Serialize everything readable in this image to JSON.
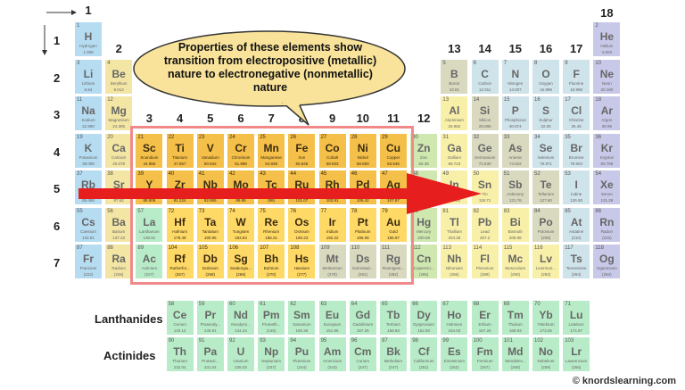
{
  "period_labels": [
    "1",
    "2",
    "3",
    "4",
    "5",
    "6",
    "7"
  ],
  "group_labels": [
    "1",
    "2",
    "3",
    "4",
    "5",
    "6",
    "7",
    "8",
    "9",
    "10",
    "11",
    "12",
    "13",
    "14",
    "15",
    "16",
    "17",
    "18"
  ],
  "callout": "Properties of these elements show transition from electropositive (metallic) nature to electronegative (nonmetallic) nature",
  "series_labels": {
    "lanthanides": "Lanthanides",
    "actinides": "Actinides"
  },
  "credit": "© knordslearning.com",
  "colors": {
    "s1": "#b6dcf2",
    "s2": "#f3e6a4",
    "transition": "#f4c04a",
    "transition_lo": "#ffd966",
    "post": "#cfe8b0",
    "metalloid": "#d9d9c0",
    "nonmetal": "#f8f0a8",
    "halogen": "#cfe3ea",
    "noble": "#c8c8e8",
    "f": "#b8ecc8",
    "highlight_border": "#f08a8a",
    "arrow": "#e61e1e"
  },
  "elements": [
    {
      "n": "1",
      "s": "H",
      "name": "Hydrogen",
      "m": "1.008",
      "r": 1,
      "c": 1,
      "cat": "s1"
    },
    {
      "n": "2",
      "s": "He",
      "name": "Helium",
      "m": "4.003",
      "r": 1,
      "c": 18,
      "cat": "noble"
    },
    {
      "n": "3",
      "s": "Li",
      "name": "Lithium",
      "m": "6.94",
      "r": 2,
      "c": 1,
      "cat": "s1"
    },
    {
      "n": "4",
      "s": "Be",
      "name": "Beryllium",
      "m": "9.012",
      "r": 2,
      "c": 2,
      "cat": "s2"
    },
    {
      "n": "5",
      "s": "B",
      "name": "Boron",
      "m": "10.81",
      "r": 2,
      "c": 13,
      "cat": "metalloid"
    },
    {
      "n": "6",
      "s": "C",
      "name": "Carbon",
      "m": "12.011",
      "r": 2,
      "c": 14,
      "cat": "halogen"
    },
    {
      "n": "7",
      "s": "N",
      "name": "Nitrogen",
      "m": "14.007",
      "r": 2,
      "c": 15,
      "cat": "halogen"
    },
    {
      "n": "8",
      "s": "O",
      "name": "Oxygen",
      "m": "15.999",
      "r": 2,
      "c": 16,
      "cat": "halogen"
    },
    {
      "n": "9",
      "s": "F",
      "name": "Fluorine",
      "m": "18.998",
      "r": 2,
      "c": 17,
      "cat": "halogen"
    },
    {
      "n": "10",
      "s": "Ne",
      "name": "Neon",
      "m": "20.180",
      "r": 2,
      "c": 18,
      "cat": "noble"
    },
    {
      "n": "11",
      "s": "Na",
      "name": "Sodium",
      "m": "22.990",
      "r": 3,
      "c": 1,
      "cat": "s1"
    },
    {
      "n": "12",
      "s": "Mg",
      "name": "Magnesium",
      "m": "24.305",
      "r": 3,
      "c": 2,
      "cat": "s2"
    },
    {
      "n": "13",
      "s": "Al",
      "name": "Aluminium",
      "m": "26.982",
      "r": 3,
      "c": 13,
      "cat": "nonmetal"
    },
    {
      "n": "14",
      "s": "Si",
      "name": "Silicon",
      "m": "28.085",
      "r": 3,
      "c": 14,
      "cat": "metalloid"
    },
    {
      "n": "15",
      "s": "P",
      "name": "Phosphorus",
      "m": "30.974",
      "r": 3,
      "c": 15,
      "cat": "halogen"
    },
    {
      "n": "16",
      "s": "S",
      "name": "Sulphur",
      "m": "32.06",
      "r": 3,
      "c": 16,
      "cat": "halogen"
    },
    {
      "n": "17",
      "s": "Cl",
      "name": "Chlorine",
      "m": "35.45",
      "r": 3,
      "c": 17,
      "cat": "halogen"
    },
    {
      "n": "18",
      "s": "Ar",
      "name": "Argon",
      "m": "39.95",
      "r": 3,
      "c": 18,
      "cat": "noble"
    },
    {
      "n": "19",
      "s": "K",
      "name": "Potassium",
      "m": "39.098",
      "r": 4,
      "c": 1,
      "cat": "s1"
    },
    {
      "n": "20",
      "s": "Ca",
      "name": "Calcium",
      "m": "40.078",
      "r": 4,
      "c": 2,
      "cat": "s2"
    },
    {
      "n": "21",
      "s": "Sc",
      "name": "Scandium",
      "m": "44.956",
      "r": 4,
      "c": 3,
      "cat": "transition",
      "hl": true
    },
    {
      "n": "22",
      "s": "Ti",
      "name": "Titanium",
      "m": "47.867",
      "r": 4,
      "c": 4,
      "cat": "transition",
      "hl": true
    },
    {
      "n": "23",
      "s": "V",
      "name": "Vanadium",
      "m": "50.942",
      "r": 4,
      "c": 5,
      "cat": "transition",
      "hl": true
    },
    {
      "n": "24",
      "s": "Cr",
      "name": "Chromium",
      "m": "51.996",
      "r": 4,
      "c": 6,
      "cat": "transition",
      "hl": true
    },
    {
      "n": "25",
      "s": "Mn",
      "name": "Manganese",
      "m": "54.938",
      "r": 4,
      "c": 7,
      "cat": "transition",
      "hl": true
    },
    {
      "n": "26",
      "s": "Fe",
      "name": "Iron",
      "m": "55.845",
      "r": 4,
      "c": 8,
      "cat": "transition",
      "hl": true
    },
    {
      "n": "27",
      "s": "Co",
      "name": "Cobalt",
      "m": "58.933",
      "r": 4,
      "c": 9,
      "cat": "transition",
      "hl": true
    },
    {
      "n": "28",
      "s": "Ni",
      "name": "Nickel",
      "m": "58.693",
      "r": 4,
      "c": 10,
      "cat": "transition",
      "hl": true
    },
    {
      "n": "29",
      "s": "Cu",
      "name": "Copper",
      "m": "63.546",
      "r": 4,
      "c": 11,
      "cat": "transition",
      "hl": true
    },
    {
      "n": "30",
      "s": "Zn",
      "name": "Zinc",
      "m": "65.38",
      "r": 4,
      "c": 12,
      "cat": "post"
    },
    {
      "n": "31",
      "s": "Ga",
      "name": "Gallium",
      "m": "69.723",
      "r": 4,
      "c": 13,
      "cat": "nonmetal"
    },
    {
      "n": "32",
      "s": "Ge",
      "name": "Germanium",
      "m": "72.630",
      "r": 4,
      "c": 14,
      "cat": "metalloid"
    },
    {
      "n": "33",
      "s": "As",
      "name": "Arsenic",
      "m": "74.922",
      "r": 4,
      "c": 15,
      "cat": "metalloid"
    },
    {
      "n": "34",
      "s": "Se",
      "name": "Selenium",
      "m": "78.971",
      "r": 4,
      "c": 16,
      "cat": "halogen"
    },
    {
      "n": "35",
      "s": "Br",
      "name": "Bromine",
      "m": "79.904",
      "r": 4,
      "c": 17,
      "cat": "halogen"
    },
    {
      "n": "36",
      "s": "Kr",
      "name": "Krypton",
      "m": "83.798",
      "r": 4,
      "c": 18,
      "cat": "noble"
    },
    {
      "n": "37",
      "s": "Rb",
      "name": "Rubidium",
      "m": "85.468",
      "r": 5,
      "c": 1,
      "cat": "s1"
    },
    {
      "n": "38",
      "s": "Sr",
      "name": "Strontium",
      "m": "87.62",
      "r": 5,
      "c": 2,
      "cat": "s2"
    },
    {
      "n": "39",
      "s": "Y",
      "name": "Yttrium",
      "m": "88.906",
      "r": 5,
      "c": 3,
      "cat": "transition",
      "hl": true
    },
    {
      "n": "40",
      "s": "Zr",
      "name": "Zirconium",
      "m": "91.224",
      "r": 5,
      "c": 4,
      "cat": "transition",
      "hl": true
    },
    {
      "n": "41",
      "s": "Nb",
      "name": "Niobium",
      "m": "92.906",
      "r": 5,
      "c": 5,
      "cat": "transition",
      "hl": true
    },
    {
      "n": "42",
      "s": "Mo",
      "name": "Molybdenum",
      "m": "95.95",
      "r": 5,
      "c": 6,
      "cat": "transition",
      "hl": true
    },
    {
      "n": "43",
      "s": "Tc",
      "name": "Technetium",
      "m": "(98)",
      "r": 5,
      "c": 7,
      "cat": "transition",
      "hl": true
    },
    {
      "n": "44",
      "s": "Ru",
      "name": "Ruthenium",
      "m": "101.07",
      "r": 5,
      "c": 8,
      "cat": "transition",
      "hl": true
    },
    {
      "n": "45",
      "s": "Rh",
      "name": "Rhodium",
      "m": "102.91",
      "r": 5,
      "c": 9,
      "cat": "transition",
      "hl": true
    },
    {
      "n": "46",
      "s": "Pd",
      "name": "Palladium",
      "m": "106.42",
      "r": 5,
      "c": 10,
      "cat": "transition",
      "hl": true
    },
    {
      "n": "47",
      "s": "Ag",
      "name": "Silver",
      "m": "107.87",
      "r": 5,
      "c": 11,
      "cat": "transition",
      "hl": true
    },
    {
      "n": "48",
      "s": "Cd",
      "name": "Cadmium",
      "m": "112.41",
      "r": 5,
      "c": 12,
      "cat": "post"
    },
    {
      "n": "49",
      "s": "In",
      "name": "Indium",
      "m": "114.82",
      "r": 5,
      "c": 13,
      "cat": "nonmetal"
    },
    {
      "n": "50",
      "s": "Sn",
      "name": "Tin",
      "m": "118.71",
      "r": 5,
      "c": 14,
      "cat": "nonmetal"
    },
    {
      "n": "51",
      "s": "Sb",
      "name": "Antimony",
      "m": "121.76",
      "r": 5,
      "c": 15,
      "cat": "metalloid"
    },
    {
      "n": "52",
      "s": "Te",
      "name": "Tellurium",
      "m": "127.60",
      "r": 5,
      "c": 16,
      "cat": "metalloid"
    },
    {
      "n": "53",
      "s": "I",
      "name": "Iodine",
      "m": "126.90",
      "r": 5,
      "c": 17,
      "cat": "halogen"
    },
    {
      "n": "54",
      "s": "Xe",
      "name": "Xenon",
      "m": "131.29",
      "r": 5,
      "c": 18,
      "cat": "noble"
    },
    {
      "n": "55",
      "s": "Cs",
      "name": "Caesium",
      "m": "132.91",
      "r": 6,
      "c": 1,
      "cat": "s1"
    },
    {
      "n": "56",
      "s": "Ba",
      "name": "Barium",
      "m": "137.33",
      "r": 6,
      "c": 2,
      "cat": "s2"
    },
    {
      "n": "57",
      "s": "La",
      "name": "Lanthanum",
      "m": "138.91",
      "r": 6,
      "c": 3,
      "cat": "f"
    },
    {
      "n": "72",
      "s": "Hf",
      "name": "Hafnium",
      "m": "178.49",
      "r": 6,
      "c": 4,
      "cat": "transition",
      "hl": true
    },
    {
      "n": "73",
      "s": "Ta",
      "name": "Tantalum",
      "m": "180.95",
      "r": 6,
      "c": 5,
      "cat": "transition",
      "hl": true
    },
    {
      "n": "74",
      "s": "W",
      "name": "Tungsten",
      "m": "183.84",
      "r": 6,
      "c": 6,
      "cat": "transition",
      "hl": true
    },
    {
      "n": "75",
      "s": "Re",
      "name": "Rhenium",
      "m": "186.21",
      "r": 6,
      "c": 7,
      "cat": "transition",
      "hl": true
    },
    {
      "n": "76",
      "s": "Os",
      "name": "Osmium",
      "m": "190.23",
      "r": 6,
      "c": 8,
      "cat": "transition",
      "hl": true
    },
    {
      "n": "77",
      "s": "Ir",
      "name": "Iridium",
      "m": "192.22",
      "r": 6,
      "c": 9,
      "cat": "transition",
      "hl": true
    },
    {
      "n": "78",
      "s": "Pt",
      "name": "Platinum",
      "m": "195.08",
      "r": 6,
      "c": 10,
      "cat": "transition",
      "hl": true
    },
    {
      "n": "79",
      "s": "Au",
      "name": "Gold",
      "m": "196.97",
      "r": 6,
      "c": 11,
      "cat": "transition",
      "hl": true
    },
    {
      "n": "80",
      "s": "Hg",
      "name": "Mercury",
      "m": "200.59",
      "r": 6,
      "c": 12,
      "cat": "post"
    },
    {
      "n": "81",
      "s": "Tl",
      "name": "Thallium",
      "m": "204.38",
      "r": 6,
      "c": 13,
      "cat": "nonmetal"
    },
    {
      "n": "82",
      "s": "Pb",
      "name": "Lead",
      "m": "207.2",
      "r": 6,
      "c": 14,
      "cat": "nonmetal"
    },
    {
      "n": "83",
      "s": "Bi",
      "name": "Bismuth",
      "m": "208.98",
      "r": 6,
      "c": 15,
      "cat": "nonmetal"
    },
    {
      "n": "84",
      "s": "Po",
      "name": "Polonium",
      "m": "(209)",
      "r": 6,
      "c": 16,
      "cat": "metalloid"
    },
    {
      "n": "85",
      "s": "At",
      "name": "Astatine",
      "m": "(210)",
      "r": 6,
      "c": 17,
      "cat": "halogen"
    },
    {
      "n": "86",
      "s": "Rn",
      "name": "Radon",
      "m": "(222)",
      "r": 6,
      "c": 18,
      "cat": "noble"
    },
    {
      "n": "87",
      "s": "Fr",
      "name": "Francium",
      "m": "(223)",
      "r": 7,
      "c": 1,
      "cat": "s1"
    },
    {
      "n": "88",
      "s": "Ra",
      "name": "Radium",
      "m": "(226)",
      "r": 7,
      "c": 2,
      "cat": "s2"
    },
    {
      "n": "89",
      "s": "Ac",
      "name": "Actinium",
      "m": "(227)",
      "r": 7,
      "c": 3,
      "cat": "f"
    },
    {
      "n": "104",
      "s": "Rf",
      "name": "Rutherfor...",
      "m": "(267)",
      "r": 7,
      "c": 4,
      "cat": "transition",
      "hl": true
    },
    {
      "n": "105",
      "s": "Db",
      "name": "Dubnium",
      "m": "(268)",
      "r": 7,
      "c": 5,
      "cat": "transition",
      "hl": true
    },
    {
      "n": "106",
      "s": "Sg",
      "name": "Seaborgiu...",
      "m": "(269)",
      "r": 7,
      "c": 6,
      "cat": "transition",
      "hl": true
    },
    {
      "n": "107",
      "s": "Bh",
      "name": "Bohrium",
      "m": "(270)",
      "r": 7,
      "c": 7,
      "cat": "transition",
      "hl": true
    },
    {
      "n": "108",
      "s": "Hs",
      "name": "Hassium",
      "m": "(277)",
      "r": 7,
      "c": 8,
      "cat": "transition",
      "hl": true
    },
    {
      "n": "109",
      "s": "Mt",
      "name": "Meitnerium",
      "m": "(278)",
      "r": 7,
      "c": 9,
      "cat": "metalloid"
    },
    {
      "n": "110",
      "s": "Ds",
      "name": "Darmstad...",
      "m": "(281)",
      "r": 7,
      "c": 10,
      "cat": "metalloid"
    },
    {
      "n": "111",
      "s": "Rg",
      "name": "Roentgeni...",
      "m": "(282)",
      "r": 7,
      "c": 11,
      "cat": "metalloid"
    },
    {
      "n": "112",
      "s": "Cn",
      "name": "Copernici...",
      "m": "(285)",
      "r": 7,
      "c": 12,
      "cat": "post"
    },
    {
      "n": "113",
      "s": "Nh",
      "name": "Nihonium",
      "m": "(286)",
      "r": 7,
      "c": 13,
      "cat": "nonmetal"
    },
    {
      "n": "114",
      "s": "Fl",
      "name": "Flerovium",
      "m": "(289)",
      "r": 7,
      "c": 14,
      "cat": "nonmetal"
    },
    {
      "n": "115",
      "s": "Mc",
      "name": "Moscovium",
      "m": "(290)",
      "r": 7,
      "c": 15,
      "cat": "nonmetal"
    },
    {
      "n": "116",
      "s": "Lv",
      "name": "Livermori...",
      "m": "(293)",
      "r": 7,
      "c": 16,
      "cat": "nonmetal"
    },
    {
      "n": "117",
      "s": "Ts",
      "name": "Tennessine",
      "m": "(294)",
      "r": 7,
      "c": 17,
      "cat": "halogen"
    },
    {
      "n": "118",
      "s": "Og",
      "name": "Oganesson",
      "m": "(294)",
      "r": 7,
      "c": 18,
      "cat": "noble"
    }
  ],
  "lanthanides": [
    {
      "n": "58",
      "s": "Ce",
      "name": "Cerium",
      "m": "140.12"
    },
    {
      "n": "59",
      "s": "Pr",
      "name": "Praseody...",
      "m": "140.91"
    },
    {
      "n": "60",
      "s": "Nd",
      "name": "Neodymi...",
      "m": "144.24"
    },
    {
      "n": "61",
      "s": "Pm",
      "name": "Prometh...",
      "m": "(145)"
    },
    {
      "n": "62",
      "s": "Sm",
      "name": "Samarium",
      "m": "150.36"
    },
    {
      "n": "63",
      "s": "Eu",
      "name": "Europium",
      "m": "151.96"
    },
    {
      "n": "64",
      "s": "Gd",
      "name": "Gadolinium",
      "m": "157.25"
    },
    {
      "n": "65",
      "s": "Tb",
      "name": "Terbium",
      "m": "158.93"
    },
    {
      "n": "66",
      "s": "Dy",
      "name": "Dysprosium",
      "m": "162.50"
    },
    {
      "n": "67",
      "s": "Ho",
      "name": "Holmium",
      "m": "164.93"
    },
    {
      "n": "68",
      "s": "Er",
      "name": "Erbium",
      "m": "167.26"
    },
    {
      "n": "69",
      "s": "Tm",
      "name": "Thulium",
      "m": "168.93"
    },
    {
      "n": "70",
      "s": "Yb",
      "name": "Ytterbium",
      "m": "173.05"
    },
    {
      "n": "71",
      "s": "Lu",
      "name": "Lutetium",
      "m": "174.97"
    }
  ],
  "actinides": [
    {
      "n": "90",
      "s": "Th",
      "name": "Thorium",
      "m": "232.04"
    },
    {
      "n": "91",
      "s": "Pa",
      "name": "Protacti...",
      "m": "231.04"
    },
    {
      "n": "92",
      "s": "U",
      "name": "Uranium",
      "m": "238.03"
    },
    {
      "n": "93",
      "s": "Np",
      "name": "Neptunium",
      "m": "(237)"
    },
    {
      "n": "94",
      "s": "Pu",
      "name": "Plutonium",
      "m": "(244)"
    },
    {
      "n": "95",
      "s": "Am",
      "name": "Americium",
      "m": "(243)"
    },
    {
      "n": "96",
      "s": "Cm",
      "name": "Curium",
      "m": "(247)"
    },
    {
      "n": "97",
      "s": "Bk",
      "name": "Berkelium",
      "m": "(247)"
    },
    {
      "n": "98",
      "s": "Cf",
      "name": "Californium",
      "m": "(251)"
    },
    {
      "n": "99",
      "s": "Es",
      "name": "Einsteinium",
      "m": "(252)"
    },
    {
      "n": "100",
      "s": "Fm",
      "name": "Fermium",
      "m": "(257)"
    },
    {
      "n": "101",
      "s": "Md",
      "name": "Mendelev...",
      "m": "(258)"
    },
    {
      "n": "102",
      "s": "No",
      "name": "Nobelium",
      "m": "(259)"
    },
    {
      "n": "103",
      "s": "Lr",
      "name": "Lawrencium",
      "m": "(266)"
    }
  ]
}
